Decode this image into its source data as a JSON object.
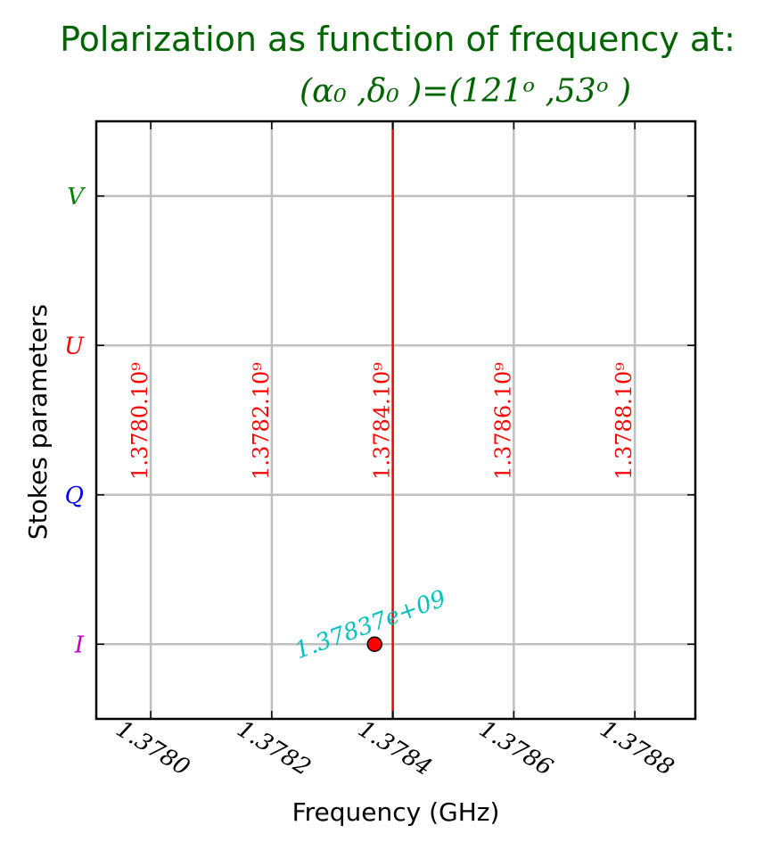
{
  "chart_data": {
    "type": "scatter",
    "title": "Polarization as function of frequency at:",
    "subtitle": "(α₀ ,δ₀ )=(121ᵒ ,53ᵒ )",
    "xlabel": "Frequency (GHz)",
    "ylabel": "Stokes parameters",
    "xlim": [
      1.37791,
      1.3789
    ],
    "ylim": [
      -0.5,
      3.5
    ],
    "x_ticks": [
      "1.3780",
      "1.3782",
      "1.3784",
      "1.3786",
      "1.3788"
    ],
    "x_tick_values": [
      1.378,
      1.3782,
      1.3784,
      1.3786,
      1.3788
    ],
    "y_categories": [
      {
        "label": "I",
        "value": 0,
        "color": "#bf00bf"
      },
      {
        "label": "Q",
        "value": 1,
        "color": "#0000ff"
      },
      {
        "label": "U",
        "value": 2,
        "color": "#ff0000"
      },
      {
        "label": "V",
        "value": 3,
        "color": "#007f00"
      }
    ],
    "frequency_labels": [
      "1.3780.10⁹",
      "1.3782.10⁹",
      "1.3784.10⁹",
      "1.3786.10⁹",
      "1.3788.10⁹"
    ],
    "marker_line_x": 1.3784,
    "points": [
      {
        "x": 1.37837,
        "y": 0,
        "label": "1.37837e+09"
      }
    ],
    "grid": true,
    "colors": {
      "title": "#006400",
      "grid": "#bfbfbf",
      "marker_line": "#ff0000",
      "point_fill": "#ff0000",
      "point_label": "#00bfbf",
      "frequency_labels": "#ff0000"
    }
  }
}
